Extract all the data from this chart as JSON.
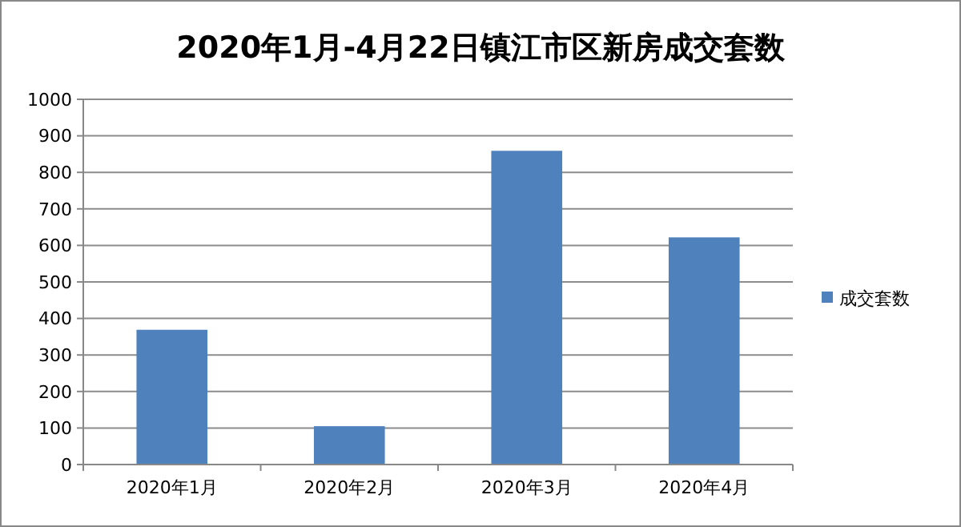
{
  "chart_data": {
    "type": "bar",
    "title": "2020年1月-4月22日镇江市区新房成交套数",
    "categories": [
      "2020年1月",
      "2020年2月",
      "2020年3月",
      "2020年4月"
    ],
    "series": [
      {
        "name": "成交套数",
        "color": "#4f81bd",
        "values": [
          369,
          105,
          859,
          622
        ]
      }
    ],
    "ylim": [
      0,
      1000
    ],
    "yticks": [
      0,
      100,
      200,
      300,
      400,
      500,
      600,
      700,
      800,
      900,
      1000
    ],
    "grid": "y",
    "legend": "right"
  }
}
